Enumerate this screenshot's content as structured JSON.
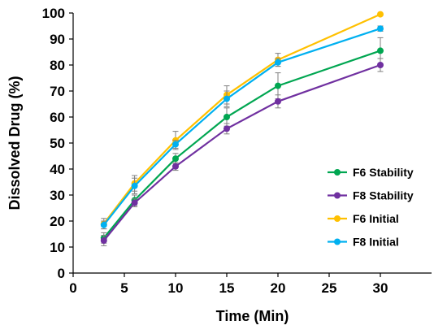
{
  "chart_data": {
    "type": "line",
    "xlabel": "Time (Min)",
    "ylabel": "Dissolved Drug (%)",
    "xlim": [
      0,
      35
    ],
    "ylim": [
      0,
      100
    ],
    "xticks": [
      0,
      5,
      10,
      15,
      20,
      25,
      30
    ],
    "yticks": [
      0,
      10,
      20,
      30,
      40,
      50,
      60,
      70,
      80,
      90,
      100
    ],
    "x": [
      3,
      6,
      10,
      15,
      20,
      30
    ],
    "grid": false,
    "legend_position": "lower-right",
    "series": [
      {
        "name": "F6 Stability",
        "color": "#00a651",
        "values": [
          13.5,
          28,
          44,
          60,
          72,
          85.5
        ],
        "error": [
          2,
          2,
          2,
          3.5,
          5,
          5
        ]
      },
      {
        "name": "F8 Stability",
        "color": "#7030a0",
        "values": [
          12.5,
          27,
          41,
          55.5,
          66,
          80
        ],
        "error": [
          2,
          1.5,
          1.5,
          2,
          2.5,
          2.5
        ]
      },
      {
        "name": "F6 Initial",
        "color": "#ffc000",
        "values": [
          19,
          34.5,
          51,
          68.5,
          82,
          99.5
        ],
        "error": [
          2,
          3,
          3.5,
          3.5,
          2.5,
          0.5
        ]
      },
      {
        "name": "F8 Initial",
        "color": "#00b0f0",
        "values": [
          18.5,
          33.5,
          49.5,
          67,
          81,
          94
        ],
        "error": [
          1.5,
          3,
          1.5,
          3,
          1.5,
          1
        ]
      }
    ]
  }
}
